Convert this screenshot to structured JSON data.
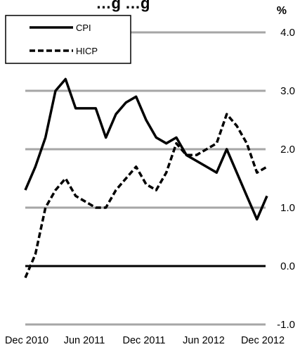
{
  "chart_data": {
    "type": "line",
    "title": "…g …g",
    "unit": "%",
    "ylim": [
      -1.0,
      4.0
    ],
    "y_ticks": [
      "4.0",
      "3.0",
      "2.0",
      "1.0",
      "0.0",
      "-1.0"
    ],
    "x_tick_labels": [
      "Dec 2010",
      "Jun 2011",
      "Dec 2011",
      "Jun 2012",
      "Dec 2012"
    ],
    "x": [
      "Dec 2010",
      "Jan 2011",
      "Feb 2011",
      "Mar 2011",
      "Apr 2011",
      "May 2011",
      "Jun 2011",
      "Jul 2011",
      "Aug 2011",
      "Sep 2011",
      "Oct 2011",
      "Nov 2011",
      "Dec 2011",
      "Jan 2012",
      "Feb 2012",
      "Mar 2012",
      "Apr 2012",
      "May 2012",
      "Jun 2012",
      "Jul 2012",
      "Aug 2012",
      "Sep 2012",
      "Oct 2012",
      "Nov 2012",
      "Dec 2012"
    ],
    "series": [
      {
        "name": "CPI",
        "style": "solid",
        "values": [
          1.3,
          1.7,
          2.2,
          3.0,
          3.2,
          2.7,
          2.7,
          2.7,
          2.2,
          2.6,
          2.8,
          2.9,
          2.5,
          2.2,
          2.1,
          2.2,
          1.9,
          1.8,
          1.7,
          1.6,
          2.0,
          1.6,
          1.2,
          0.8,
          1.2
        ]
      },
      {
        "name": "HICP",
        "style": "dashed",
        "values": [
          -0.2,
          0.2,
          1.0,
          1.3,
          1.5,
          1.2,
          1.1,
          1.0,
          1.0,
          1.3,
          1.5,
          1.7,
          1.4,
          1.3,
          1.6,
          2.1,
          1.9,
          1.9,
          2.0,
          2.1,
          2.6,
          2.4,
          2.1,
          1.6,
          1.7
        ]
      }
    ],
    "legend_position": "top-left",
    "grid": true,
    "colors": {
      "line": "#000000",
      "grid": "#a6a6a6",
      "zero_line": "#000000"
    }
  }
}
